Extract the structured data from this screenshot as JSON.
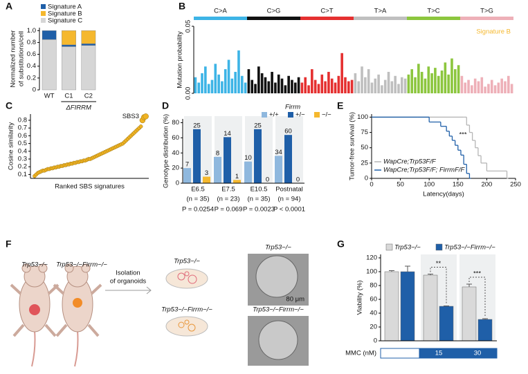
{
  "chart_data": [
    {
      "type": "stacked_bar",
      "label": "A",
      "ylabel": [
        "Normalized number",
        "of substitutions/cell"
      ],
      "categories": [
        "WT",
        "C1",
        "C2"
      ],
      "group_label": "ΔFIRRM",
      "series": [
        {
          "name": "Signature A",
          "color": "#1f5fa8",
          "values": [
            0.15,
            0.03,
            0.03
          ]
        },
        {
          "name": "Signature B",
          "color": "#f5b82e",
          "values": [
            0,
            0.24,
            0.22
          ]
        },
        {
          "name": "Signature C",
          "color": "#d6d6d6",
          "values": [
            0.85,
            0.73,
            0.75
          ]
        }
      ],
      "ylim": [
        0,
        1.05
      ],
      "yticks": [
        0,
        0.2,
        0.4,
        0.6,
        0.8,
        {
          "value": 1,
          "label": "1.0"
        }
      ]
    },
    {
      "type": "bar",
      "label": "B",
      "ylabel": "Mutation probability",
      "annotation": "Signature B",
      "annotation_color": "#f5b82e",
      "groups": [
        {
          "name": "C>A",
          "color": "#3db4e6",
          "values": [
            0.012,
            0.008,
            0.015,
            0.02,
            0.007,
            0.01,
            0.022,
            0.014,
            0.009,
            0.018,
            0.025,
            0.011,
            0.016,
            0.032,
            0.013,
            0.008
          ]
        },
        {
          "name": "C>G",
          "color": "#111111",
          "values": [
            0.018,
            0.01,
            0.007,
            0.02,
            0.015,
            0.012,
            0.009,
            0.016,
            0.008,
            0.014,
            0.011,
            0.006,
            0.013,
            0.01,
            0.008,
            0.012
          ]
        },
        {
          "name": "C>T",
          "color": "#e53030",
          "values": [
            0.008,
            0.012,
            0.006,
            0.018,
            0.01,
            0.007,
            0.014,
            0.009,
            0.016,
            0.011,
            0.008,
            0.013,
            0.03,
            0.012,
            0.009,
            0.01
          ]
        },
        {
          "name": "T>A",
          "color": "#bfbfbf",
          "values": [
            0.015,
            0.009,
            0.02,
            0.012,
            0.018,
            0.008,
            0.011,
            0.014,
            0.006,
            0.01,
            0.016,
            0.009,
            0.013,
            0.007,
            0.012,
            0.011
          ]
        },
        {
          "name": "T>C",
          "color": "#8cc63e",
          "values": [
            0.014,
            0.018,
            0.012,
            0.022,
            0.016,
            0.011,
            0.02,
            0.015,
            0.019,
            0.013,
            0.017,
            0.023,
            0.014,
            0.026,
            0.018,
            0.021
          ]
        },
        {
          "name": "T>G",
          "color": "#eeb0b8",
          "values": [
            0.013,
            0.008,
            0.01,
            0.006,
            0.011,
            0.009,
            0.012,
            0.005,
            0.007,
            0.01,
            0.006,
            0.008,
            0.011,
            0.009,
            0.013,
            0.007
          ]
        }
      ],
      "ylim": [
        0,
        0.05
      ],
      "yticks": [
        {
          "value": 0,
          "label": "0.00"
        },
        {
          "value": 0.05,
          "label": "0.05"
        }
      ]
    },
    {
      "type": "scatter",
      "label": "C",
      "ylabel": "Cosine similarity",
      "xlabel": "Ranked SBS signatures",
      "annotation": "SBS3",
      "color": "#f0b323",
      "values": [
        0.08,
        0.1,
        0.12,
        0.13,
        0.14,
        0.15,
        0.15,
        0.16,
        0.17,
        0.17,
        0.18,
        0.18,
        0.19,
        0.19,
        0.2,
        0.2,
        0.21,
        0.21,
        0.22,
        0.22,
        0.23,
        0.23,
        0.24,
        0.24,
        0.25,
        0.25,
        0.26,
        0.26,
        0.27,
        0.27,
        0.28,
        0.28,
        0.29,
        0.3,
        0.3,
        0.31,
        0.32,
        0.33,
        0.34,
        0.35,
        0.36,
        0.37,
        0.38,
        0.39,
        0.4,
        0.41,
        0.42,
        0.43,
        0.44,
        0.45,
        0.46,
        0.47,
        0.48,
        0.49,
        0.5,
        0.52,
        0.54,
        0.56,
        0.58,
        0.6,
        0.62,
        0.64,
        0.66,
        0.68,
        0.7,
        0.72,
        0.8,
        0.84,
        0.85
      ],
      "ylim": [
        0.05,
        0.88
      ],
      "yticks": [
        0.1,
        0.2,
        0.3,
        0.4,
        0.5,
        0.6,
        0.7,
        0.8
      ]
    },
    {
      "type": "grouped_bar",
      "label": "D",
      "ylabel": "Genotype distribution (%)",
      "legend_title": "Firrm",
      "categories": [
        "E6.5",
        "E7.5",
        "E10.5",
        "Postnatal"
      ],
      "n_labels": [
        "(n = 35)",
        "(n = 23)",
        "(n = 35)",
        "(n = 94)"
      ],
      "p_labels": [
        "P = 0.0254",
        "P = 0.069",
        "P = 0.0023",
        "P < 0.0001"
      ],
      "series": [
        {
          "name": "+/+",
          "color": "#8fb8de",
          "values": [
            20,
            34.8,
            28.6,
            36.2
          ],
          "counts": [
            "7",
            "8",
            "10",
            "34"
          ]
        },
        {
          "name": "+/−",
          "color": "#1f5fa8",
          "values": [
            71.4,
            60.9,
            71.4,
            63.8
          ],
          "counts": [
            "25",
            "14",
            "25",
            "60"
          ]
        },
        {
          "name": "−/−",
          "color": "#f5b82e",
          "values": [
            8.6,
            4.3,
            0,
            0
          ],
          "counts": [
            "3",
            "1",
            "0",
            "0"
          ]
        }
      ],
      "ylim": [
        0,
        85
      ],
      "yticks": [
        0,
        20,
        40,
        60,
        80
      ]
    },
    {
      "type": "step_line",
      "label": "E",
      "ylabel": "Tumor-free survival (%)",
      "xlabel": "Latency(days)",
      "annotation": "***",
      "series": [
        {
          "name": "WapCre;Trp53F/F",
          "color": "#b5b5b5",
          "x": [
            0,
            160,
            165,
            170,
            175,
            180,
            185,
            190,
            200,
            235
          ],
          "values": [
            100,
            100,
            87,
            75,
            62,
            50,
            37,
            25,
            12,
            0
          ]
        },
        {
          "name": "WapCre;Trp53F/F; FirrmF/F",
          "color": "#1f5fa8",
          "x": [
            0,
            80,
            100,
            120,
            130,
            135,
            140,
            145,
            150,
            155,
            160,
            165,
            170
          ],
          "values": [
            100,
            100,
            92,
            85,
            77,
            69,
            62,
            54,
            46,
            38,
            23,
            8,
            0
          ]
        }
      ],
      "xlim": [
        0,
        250
      ],
      "xticks": [
        0,
        50,
        100,
        150,
        200,
        250
      ],
      "ylim": [
        0,
        105
      ],
      "yticks": [
        0,
        25,
        50,
        75,
        100
      ]
    },
    {
      "type": "error_bar",
      "label": "G",
      "ylabel": "Viability (%)",
      "xlabel": "MMC (nM)",
      "categories": [
        null,
        "15",
        "30"
      ],
      "annotations": [
        "**",
        "***"
      ],
      "series": [
        {
          "name": "Trp53−/−",
          "color": "#d9d9d9",
          "values": [
            100,
            95,
            78
          ],
          "errors": [
            1.5,
            1.5,
            4
          ]
        },
        {
          "name": "Trp53−/−Firrm−/−",
          "color": "#1f5fa8",
          "values": [
            100,
            50,
            31
          ],
          "errors": [
            8,
            0.5,
            1
          ]
        }
      ],
      "ylim": [
        0,
        125
      ],
      "yticks": [
        0,
        20,
        40,
        60,
        80,
        100,
        120
      ]
    }
  ],
  "figure_f": {
    "label": "F",
    "mouse_labels": [
      "Trp53−/−",
      "Trp53−/−Firrm−/−"
    ],
    "arrow_text": [
      "Isolation",
      "of organoids"
    ],
    "dish_labels": [
      "Trp53−/−",
      "Trp53−/−Firrm−/−"
    ],
    "photo_labels": [
      "Trp53−/−",
      "Trp53−/−Firrm−/−"
    ],
    "scale_bar": "80 μm"
  }
}
